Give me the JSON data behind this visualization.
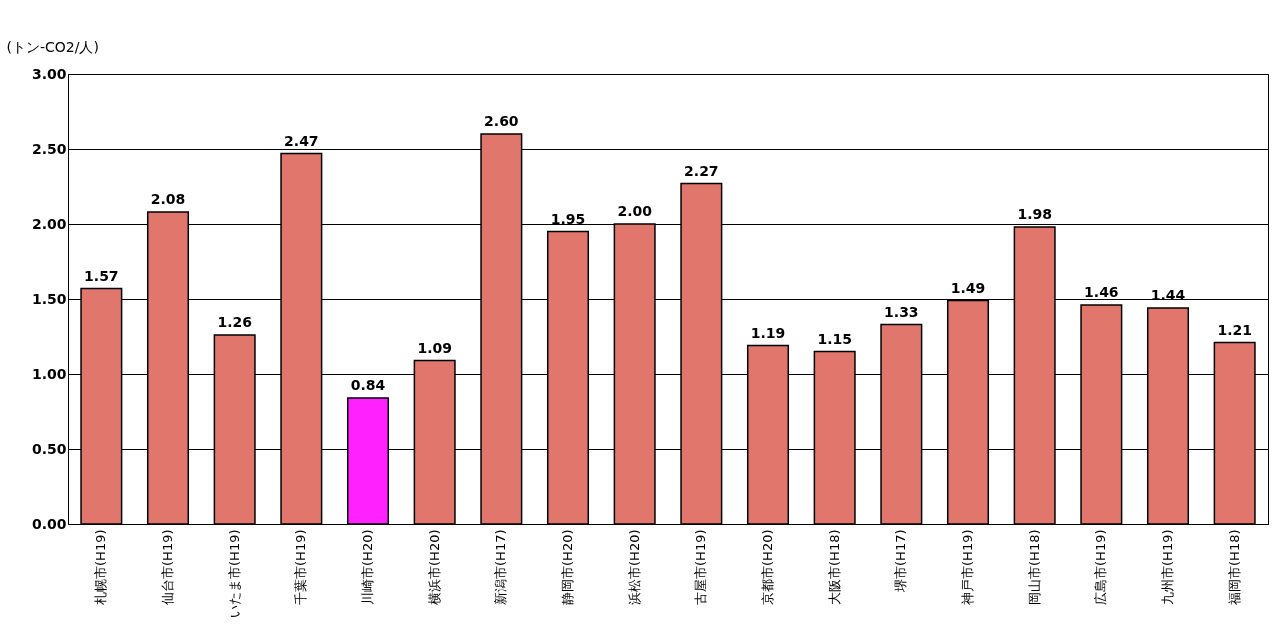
{
  "chart_data": {
    "type": "bar",
    "ylabel": "(トン-CO2/人)",
    "categories": [
      "札幌市(H19)",
      "仙台市(H19)",
      "いたま市(H19)",
      "千葉市(H19)",
      "川崎市(H20)",
      "横浜市(H20)",
      "新潟市(H17)",
      "静岡市(H20)",
      "浜松市(H20)",
      "古屋市(H19)",
      "京都市(H20)",
      "大阪市(H18)",
      "堺市(H17)",
      "神戸市(H19)",
      "岡山市(H18)",
      "広島市(H19)",
      "九州市(H19)",
      "福岡市(H18)"
    ],
    "values": [
      1.57,
      2.08,
      1.26,
      2.47,
      0.84,
      1.09,
      2.6,
      1.95,
      2.0,
      2.27,
      1.19,
      1.15,
      1.33,
      1.49,
      1.98,
      1.46,
      1.44,
      1.21
    ],
    "colors": [
      "#e0766c",
      "#e0766c",
      "#e0766c",
      "#e0766c",
      "#ff22ff",
      "#e0766c",
      "#e0766c",
      "#e0766c",
      "#e0766c",
      "#e0766c",
      "#e0766c",
      "#e0766c",
      "#e0766c",
      "#e0766c",
      "#e0766c",
      "#e0766c",
      "#e0766c",
      "#e0766c"
    ],
    "ylim": [
      0,
      3
    ],
    "yticks": [
      {
        "value": 0,
        "label": "0.00"
      },
      {
        "value": 0.5,
        "label": "0.50"
      },
      {
        "value": 1,
        "label": "1.00"
      },
      {
        "value": 1.5,
        "label": "1.50"
      },
      {
        "value": 2,
        "label": "2.00"
      },
      {
        "value": 2.5,
        "label": "2.50"
      },
      {
        "value": 3,
        "label": "3.00"
      }
    ],
    "grid": "y",
    "value_labels": [
      "1.57",
      "2.08",
      "1.26",
      "2.47",
      "0.84",
      "1.09",
      "2.60",
      "1.95",
      "2.00",
      "2.27",
      "1.19",
      "1.15",
      "1.33",
      "1.49",
      "1.98",
      "1.46",
      "1.44",
      "1.21"
    ]
  }
}
